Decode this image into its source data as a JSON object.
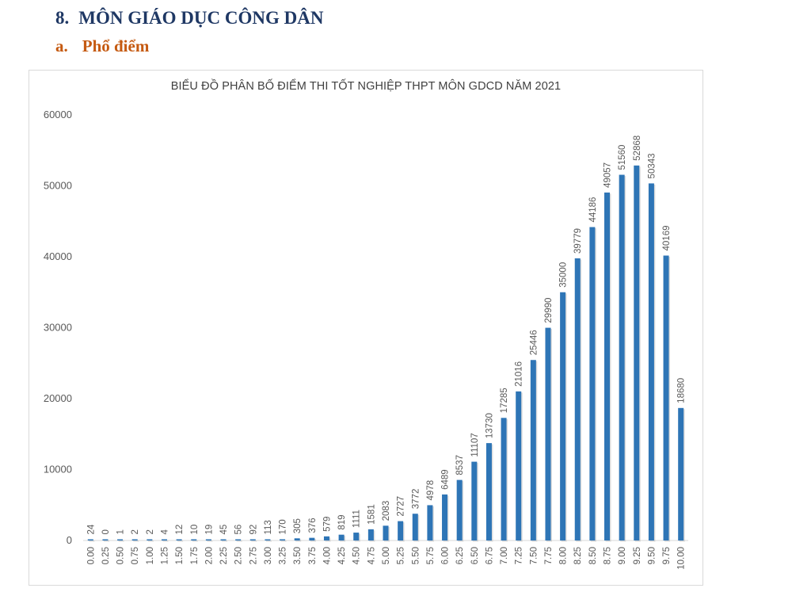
{
  "section": {
    "number": "8.",
    "title": "MÔN GIÁO DỤC CÔNG DÂN"
  },
  "subsection": {
    "number": "a.",
    "title": "Phổ điểm"
  },
  "colors": {
    "heading": "#1f3864",
    "subheading": "#c55a11",
    "bar": "#2e75b6"
  },
  "chart_data": {
    "type": "bar",
    "title": "BIỂU ĐỒ PHÂN BỐ ĐIỂM THI TỐT NGHIỆP THPT MÔN GDCD NĂM 2021",
    "xlabel": "",
    "ylabel": "",
    "ylim": [
      0,
      60000
    ],
    "yticks": [
      "0",
      "10000",
      "20000",
      "30000",
      "40000",
      "50000",
      "60000"
    ],
    "grid": false,
    "categories": [
      "0.00",
      "0.25",
      "0.50",
      "0.75",
      "1.00",
      "1.25",
      "1.50",
      "1.75",
      "2.00",
      "2.25",
      "2.50",
      "2.75",
      "3.00",
      "3.25",
      "3.50",
      "3.75",
      "4.00",
      "4.25",
      "4.50",
      "4.75",
      "5.00",
      "5.25",
      "5.50",
      "5.75",
      "6.00",
      "6.25",
      "6.50",
      "6.75",
      "7.00",
      "7.25",
      "7.50",
      "7.75",
      "8.00",
      "8.25",
      "8.50",
      "8.75",
      "9.00",
      "9.25",
      "9.50",
      "9.75",
      "10.00"
    ],
    "values": [
      24,
      0,
      1,
      2,
      2,
      4,
      12,
      10,
      19,
      45,
      56,
      92,
      113,
      170,
      305,
      376,
      579,
      819,
      1111,
      1581,
      2083,
      2727,
      3772,
      4978,
      6489,
      8537,
      11107,
      13730,
      17285,
      21016,
      25446,
      29990,
      35000,
      39779,
      44186,
      49057,
      51560,
      52868,
      50343,
      40169,
      18680
    ]
  }
}
